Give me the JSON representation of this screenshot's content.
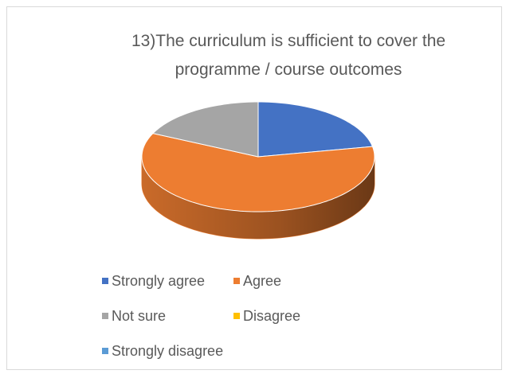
{
  "chart_data": {
    "type": "pie3d",
    "title": "13)The curriculum is sufficient to cover the programme / course outcomes",
    "categories": [
      "Strongly agree",
      "Agree",
      "Not sure",
      "Disagree",
      "Strongly disagree"
    ],
    "values": [
      22,
      60,
      18,
      0,
      0
    ],
    "colors": [
      "#4472c4",
      "#ed7d31",
      "#a5a5a5",
      "#ffc000",
      "#5b9bd5"
    ],
    "legend": "bottom"
  }
}
